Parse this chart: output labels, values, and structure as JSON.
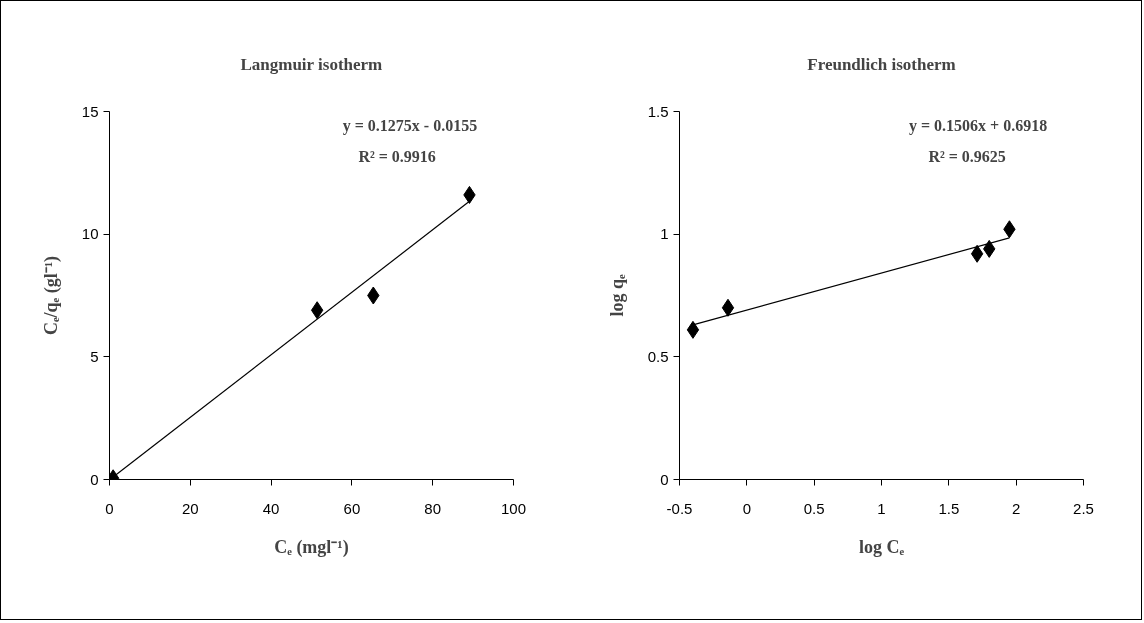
{
  "chart_data": [
    {
      "type": "scatter",
      "title": "Langmuir isotherm",
      "xlabel": "Cₑ (mgl⁻¹)",
      "ylabel": "Cₑ/qₑ (gl⁻¹)",
      "xlim": [
        0,
        100
      ],
      "xticks": [
        0,
        20,
        40,
        60,
        80,
        100
      ],
      "ylim": [
        0,
        15
      ],
      "yticks": [
        0,
        5,
        10,
        15
      ],
      "grid": false,
      "annotations": [
        "y = 0.1275x - 0.0155",
        "R² = 0.9916"
      ],
      "series": [
        {
          "marker": "diamond",
          "color": "#000000",
          "x": [
            0.9,
            51.4,
            65.3,
            89.1
          ],
          "values": [
            0.05,
            6.9,
            7.5,
            11.6
          ]
        },
        {
          "type": "line",
          "color": "#000000",
          "x": [
            0.9,
            89.1
          ],
          "values": [
            0.1,
            11.34
          ]
        }
      ]
    },
    {
      "type": "scatter",
      "title": "Freundlich isotherm",
      "xlabel": "log Cₑ",
      "ylabel": "log qₑ",
      "xlim": [
        -0.5,
        2.5
      ],
      "xticks": [
        -0.5,
        0,
        0.5,
        1,
        1.5,
        2,
        2.5
      ],
      "ylim": [
        0,
        1.5
      ],
      "yticks": [
        0,
        0.5,
        1,
        1.5
      ],
      "grid": false,
      "annotations": [
        "y = 0.1506x + 0.6918",
        "R² = 0.9625"
      ],
      "series": [
        {
          "marker": "diamond",
          "color": "#000000",
          "x": [
            -0.4,
            -0.14,
            1.71,
            1.8,
            1.95
          ],
          "values": [
            0.61,
            0.7,
            0.92,
            0.94,
            1.02
          ]
        },
        {
          "type": "line",
          "color": "#000000",
          "x": [
            -0.4,
            1.95
          ],
          "values": [
            0.63,
            0.985
          ]
        }
      ]
    }
  ]
}
